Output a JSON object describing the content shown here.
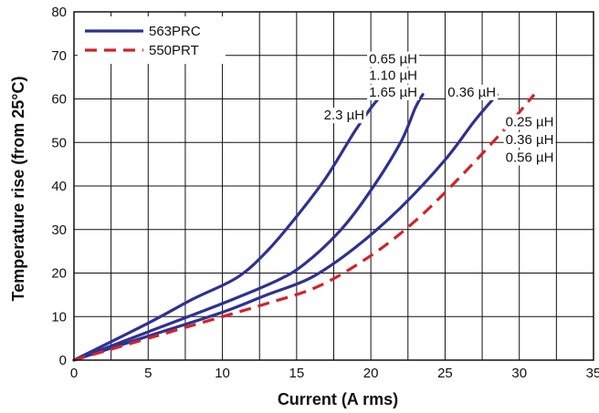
{
  "chart_data": {
    "type": "line",
    "title": "",
    "xlabel": "Current (A rms)",
    "ylabel": "Temperature rise (from 25°C)",
    "xlim": [
      0,
      35
    ],
    "ylim": [
      0,
      80
    ],
    "x_ticks": [
      "0",
      "5",
      "10",
      "15",
      "20",
      "25",
      "30",
      "35"
    ],
    "y_ticks": [
      "0",
      "10",
      "20",
      "30",
      "40",
      "50",
      "60",
      "70",
      "80"
    ],
    "grid": true,
    "legend_position": "top-left",
    "legend": [
      {
        "name": "563PRC",
        "color": "#2e3192",
        "style": "solid"
      },
      {
        "name": "550PRT",
        "color": "#d2232a",
        "style": "dashed"
      }
    ],
    "series": [
      {
        "name": "563PRC",
        "annotation": "2.3 µH",
        "color": "#2e3192",
        "style": "solid",
        "x": [
          0,
          5,
          8,
          11,
          13,
          15,
          17,
          19,
          20.5,
          21.2
        ],
        "y": [
          0,
          8.5,
          14,
          19,
          25,
          33,
          42,
          53,
          60,
          61
        ]
      },
      {
        "name": "563PRC",
        "annotation": "0.65 µH / 1.10 µH / 1.65 µH",
        "color": "#2e3192",
        "style": "solid",
        "x": [
          0,
          5,
          10,
          13.5,
          15.5,
          18,
          20,
          22,
          23,
          23.5
        ],
        "y": [
          0,
          6.5,
          13,
          18,
          22,
          30,
          39,
          50,
          58,
          61
        ]
      },
      {
        "name": "563PRC",
        "annotation": "0.36 µH",
        "color": "#2e3192",
        "style": "solid",
        "x": [
          0,
          5,
          10,
          13,
          16,
          19,
          22,
          25,
          27,
          28.5
        ],
        "y": [
          0,
          5.5,
          11,
          15,
          19,
          26,
          35,
          46,
          55,
          61
        ]
      },
      {
        "name": "550PRT",
        "annotation": "0.25 µH / 0.36 µH / 0.56 µH",
        "color": "#d2232a",
        "style": "dashed",
        "x": [
          0,
          5,
          10,
          13,
          16.5,
          20,
          23,
          26,
          29,
          31
        ],
        "y": [
          0,
          5,
          10,
          13,
          17,
          24,
          32,
          42,
          53,
          61
        ]
      }
    ],
    "annotations": [
      {
        "text": "2.3 µH",
        "x": 18.2,
        "y": 56.3
      },
      {
        "text": "0.65 µH",
        "x": 21.5,
        "y": 69.2
      },
      {
        "text": "1.10 µH",
        "x": 21.5,
        "y": 65.4
      },
      {
        "text": "1.65 µH",
        "x": 21.5,
        "y": 61.6
      },
      {
        "text": "0.36 µH",
        "x": 26.8,
        "y": 61.6
      },
      {
        "text": "0.25 µH",
        "x": 30.7,
        "y": 54.8
      },
      {
        "text": "0.36 µH",
        "x": 30.7,
        "y": 50.7
      },
      {
        "text": "0.56 µH",
        "x": 30.7,
        "y": 46.6
      }
    ]
  }
}
